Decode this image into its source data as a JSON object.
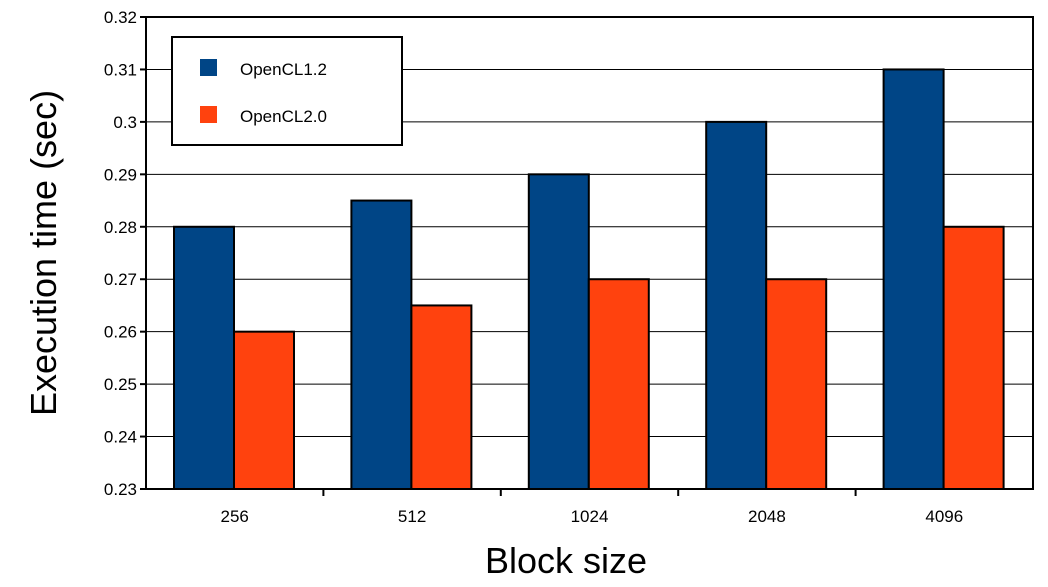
{
  "chart_data": {
    "type": "bar",
    "title": "",
    "xlabel": "Block size",
    "ylabel": "Execution time (sec)",
    "categories": [
      "256",
      "512",
      "1024",
      "2048",
      "4096"
    ],
    "series": [
      {
        "name": "OpenCL1.2",
        "color": "#004586",
        "values": [
          0.28,
          0.285,
          0.29,
          0.3,
          0.31
        ]
      },
      {
        "name": "OpenCL2.0",
        "color": "#ff420e",
        "values": [
          0.26,
          0.265,
          0.27,
          0.27,
          0.28
        ]
      }
    ],
    "ylim": [
      0.23,
      0.32
    ],
    "yticks": [
      "0.23",
      "0.24",
      "0.25",
      "0.26",
      "0.27",
      "0.28",
      "0.29",
      "0.3",
      "0.31",
      "0.32"
    ],
    "grid": "horizontal",
    "legend_position": "top-left"
  }
}
